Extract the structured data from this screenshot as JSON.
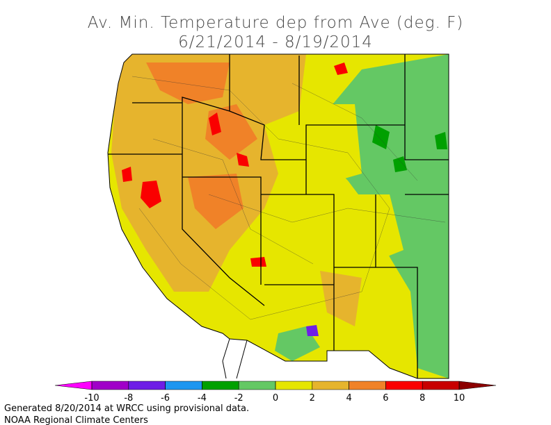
{
  "title_lines": [
    "Av. Min. Temperature dep from Ave (deg. F)",
    "6/21/2014 - 8/19/2014"
  ],
  "legend": {
    "ticks": [
      -10,
      -8,
      -6,
      -4,
      -2,
      0,
      2,
      4,
      6,
      8,
      10
    ],
    "colors": [
      "#ff00ff",
      "#a000c8",
      "#6e1ee6",
      "#1e96f0",
      "#00a000",
      "#64c864",
      "#e6e600",
      "#e6b42d",
      "#f08228",
      "#fa0000",
      "#c80000",
      "#8c0000"
    ]
  },
  "footer_lines": [
    "Generated 8/20/2014 at WRCC using provisional data.",
    "NOAA Regional Climate Centers"
  ]
}
